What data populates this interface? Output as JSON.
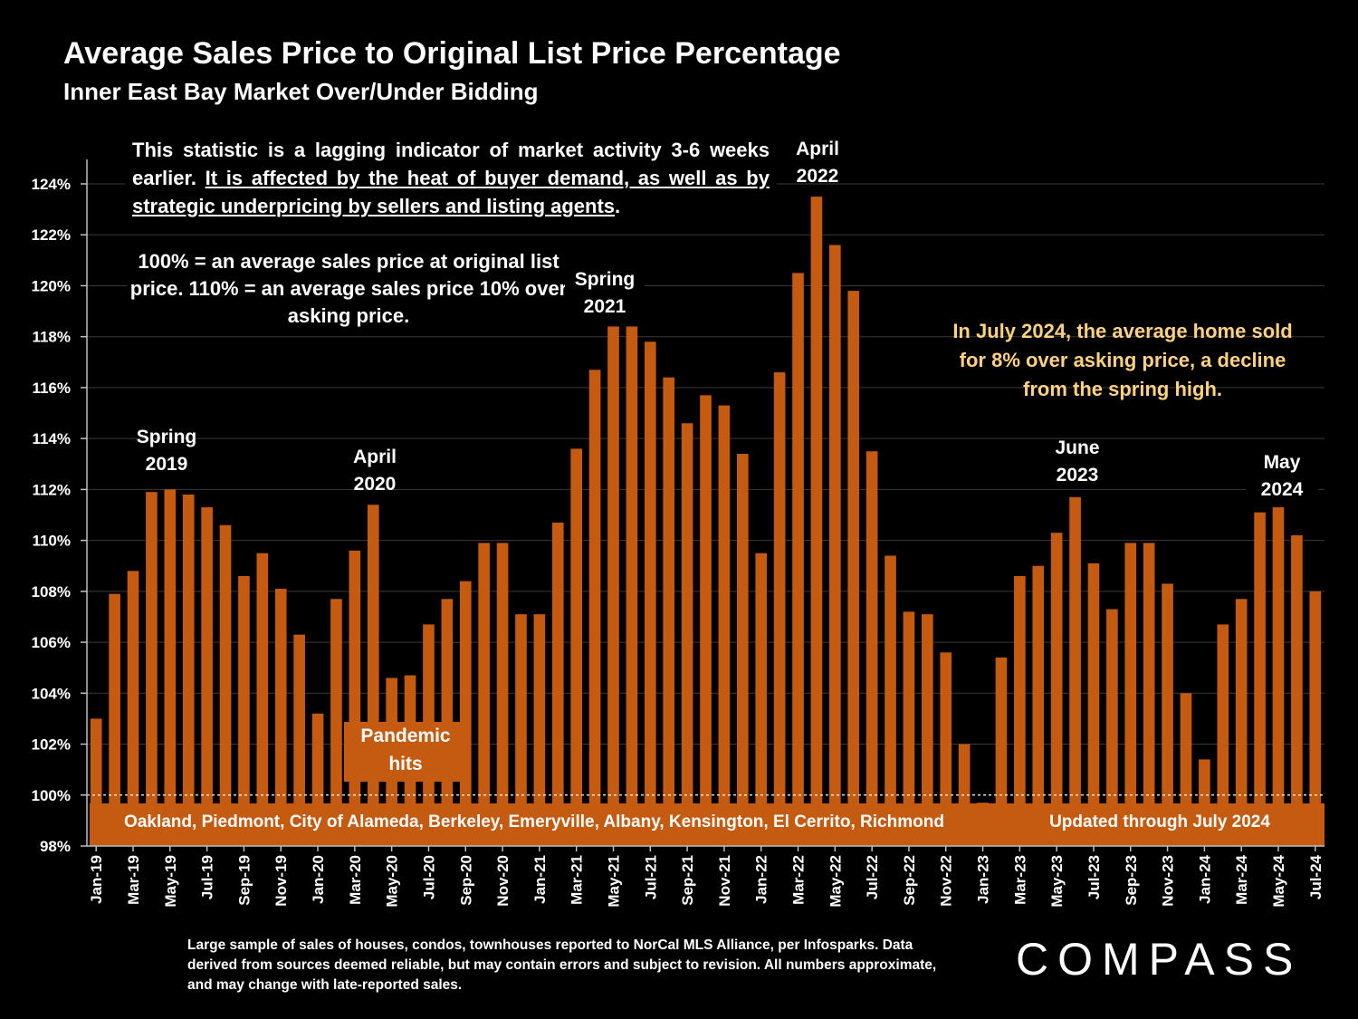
{
  "header": {
    "title": "Average Sales Price to Original List Price Percentage",
    "subtitle": "Inner East Bay Market Over/Under Bidding"
  },
  "notes": {
    "lagging_plain": "This statistic is a lagging indicator of market activity 3-6 weeks earlier. ",
    "lagging_underlined": "It is affected by the heat of buyer demand, as well as by strategic underpricing by sellers and listing agents",
    "lagging_end": ".",
    "definition": "100% = an average sales price at original list price. 110% = an average sales price 10% over asking price.",
    "july_2024": "In July 2024, the average home sold for 8% over asking price, a decline from the spring high."
  },
  "annotations": {
    "spring_2019": [
      "Spring",
      "2019"
    ],
    "april_2020": [
      "April",
      "2020"
    ],
    "spring_2021": [
      "Spring",
      "2021"
    ],
    "april_2022": [
      "April",
      "2022"
    ],
    "june_2023": [
      "June",
      "2023"
    ],
    "may_2024": [
      "May",
      "2024"
    ],
    "pandemic": [
      "Pandemic",
      "hits"
    ]
  },
  "band": {
    "regions": "Oakland, Piedmont, City of Alameda, Berkeley, Emeryville, Albany, Kensington, El Cerrito, Richmond",
    "updated": "Updated through July 2024"
  },
  "footnote": "Large sample of sales of houses, condos, townhouses reported to NorCal MLS Alliance, per Infosparks. Data derived from sources deemed reliable, but may contain errors and subject to revision. All numbers approximate, and may change with late-reported sales.",
  "logo": "COMPASS",
  "colors": {
    "bar": "#C55A11",
    "background": "#000000",
    "highlight_text": "#FFD27F",
    "grid": "#3a3a3a"
  },
  "chart_data": {
    "type": "bar",
    "title": "Average Sales Price to Original List Price Percentage",
    "ylabel": "",
    "xlabel": "",
    "ylim": [
      98,
      124
    ],
    "yticks": [
      98,
      100,
      102,
      104,
      106,
      108,
      110,
      112,
      114,
      116,
      118,
      120,
      122,
      124
    ],
    "ytick_labels": [
      "98%",
      "100%",
      "102%",
      "104%",
      "106%",
      "108%",
      "110%",
      "112%",
      "114%",
      "116%",
      "118%",
      "120%",
      "122%",
      "124%"
    ],
    "reference_line": 100,
    "grid": true,
    "categories": [
      "Jan-19",
      "Feb-19",
      "Mar-19",
      "Apr-19",
      "May-19",
      "Jun-19",
      "Jul-19",
      "Aug-19",
      "Sep-19",
      "Oct-19",
      "Nov-19",
      "Dec-19",
      "Jan-20",
      "Feb-20",
      "Mar-20",
      "Apr-20",
      "May-20",
      "Jun-20",
      "Jul-20",
      "Aug-20",
      "Sep-20",
      "Oct-20",
      "Nov-20",
      "Dec-20",
      "Jan-21",
      "Feb-21",
      "Mar-21",
      "Apr-21",
      "May-21",
      "Jun-21",
      "Jul-21",
      "Aug-21",
      "Sep-21",
      "Oct-21",
      "Nov-21",
      "Dec-21",
      "Jan-22",
      "Feb-22",
      "Mar-22",
      "Apr-22",
      "May-22",
      "Jun-22",
      "Jul-22",
      "Aug-22",
      "Sep-22",
      "Oct-22",
      "Nov-22",
      "Dec-22",
      "Jan-23",
      "Feb-23",
      "Mar-23",
      "Apr-23",
      "May-23",
      "Jun-23",
      "Jul-23",
      "Aug-23",
      "Sep-23",
      "Oct-23",
      "Nov-23",
      "Dec-23",
      "Jan-24",
      "Feb-24",
      "Mar-24",
      "Apr-24",
      "May-24",
      "Jun-24",
      "Jul-24"
    ],
    "xtick_labels": [
      "Jan-19",
      "Mar-19",
      "May-19",
      "Jul-19",
      "Sep-19",
      "Nov-19",
      "Jan-20",
      "Mar-20",
      "May-20",
      "Jul-20",
      "Sep-20",
      "Nov-20",
      "Jan-21",
      "Mar-21",
      "May-21",
      "Jul-21",
      "Sep-21",
      "Nov-21",
      "Jan-22",
      "Mar-22",
      "May-22",
      "Jul-22",
      "Sep-22",
      "Nov-22",
      "Jan-23",
      "Mar-23",
      "May-23",
      "Jul-23",
      "Sep-23",
      "Nov-23",
      "Jan-24",
      "Mar-24",
      "May-24",
      "Jul-24"
    ],
    "values": [
      103.0,
      107.9,
      108.8,
      111.9,
      112.0,
      111.8,
      111.3,
      110.6,
      108.6,
      109.5,
      108.1,
      106.3,
      103.2,
      107.7,
      109.6,
      111.4,
      104.6,
      104.7,
      106.7,
      107.7,
      108.4,
      109.9,
      109.9,
      107.1,
      107.1,
      110.7,
      113.6,
      116.7,
      118.4,
      118.4,
      117.8,
      116.4,
      114.6,
      115.7,
      115.3,
      113.4,
      109.5,
      116.6,
      120.5,
      123.5,
      121.6,
      119.8,
      113.5,
      109.4,
      107.2,
      107.1,
      105.6,
      102.0,
      99.7,
      105.4,
      108.6,
      109.0,
      110.3,
      111.7,
      109.1,
      107.3,
      109.9,
      109.9,
      108.3,
      104.0,
      101.4,
      106.7,
      107.7,
      111.1,
      111.3,
      110.2,
      108.0
    ]
  }
}
